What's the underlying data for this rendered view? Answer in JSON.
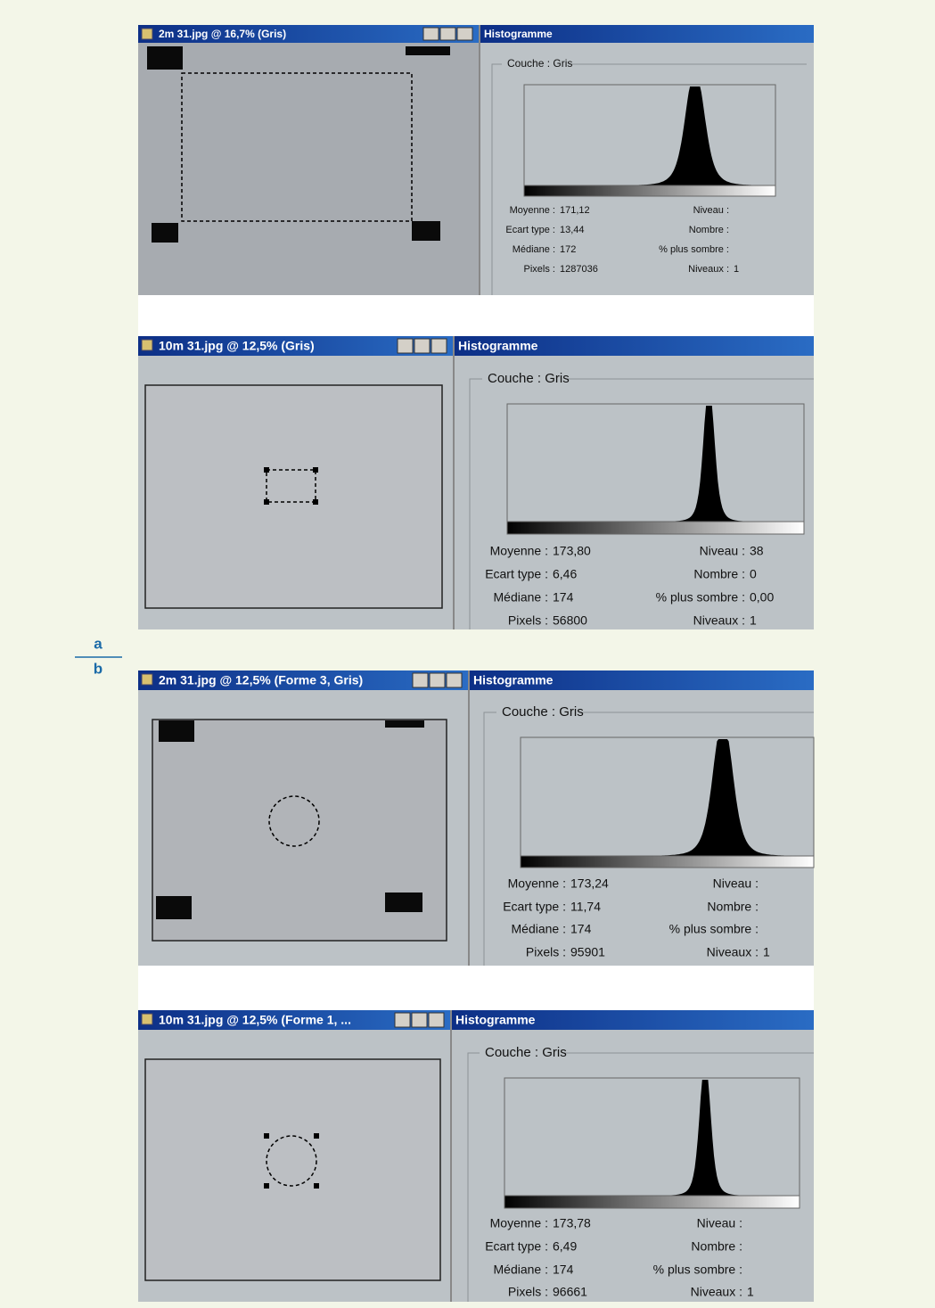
{
  "figure_labels": {
    "a": "a",
    "b": "b"
  },
  "panels": [
    {
      "window_title": "2m 31.jpg @ 16,7% (Gris)",
      "histogram_title": "Histogramme",
      "channel": "Couche : Gris",
      "stats_left": [
        {
          "label": "Moyenne :",
          "value": "171,12"
        },
        {
          "label": "Ecart type :",
          "value": "13,44"
        },
        {
          "label": "Médiane :",
          "value": "172"
        },
        {
          "label": "Pixels :",
          "value": "1287036"
        }
      ],
      "stats_right": [
        {
          "label": "Niveau :"
        },
        {
          "label": "Nombre :"
        },
        {
          "label": "% plus sombre :"
        },
        {
          "label": "Niveaux :",
          "value": "1"
        }
      ]
    },
    {
      "window_title": "10m 31.jpg @ 12,5% (Gris)",
      "histogram_title": "Histogramme",
      "channel": "Couche : Gris",
      "stats_left": [
        {
          "label": "Moyenne :",
          "value": "173,80"
        },
        {
          "label": "Ecart type :",
          "value": "6,46"
        },
        {
          "label": "Médiane :",
          "value": "174"
        },
        {
          "label": "Pixels :",
          "value": "56800"
        }
      ],
      "stats_right": [
        {
          "label": "Niveau :",
          "value": "38"
        },
        {
          "label": "Nombre :",
          "value": "0"
        },
        {
          "label": "% plus sombre :",
          "value": "0,00"
        },
        {
          "label": "Niveaux :",
          "value": "1"
        }
      ]
    },
    {
      "window_title": "2m 31.jpg @ 12,5% (Forme 3, Gris)",
      "histogram_title": "Histogramme",
      "channel": "Couche : Gris",
      "stats_left": [
        {
          "label": "Moyenne :",
          "value": "173,24"
        },
        {
          "label": "Ecart type :",
          "value": "11,74"
        },
        {
          "label": "Médiane :",
          "value": "174"
        },
        {
          "label": "Pixels :",
          "value": "95901"
        }
      ],
      "stats_right": [
        {
          "label": "Niveau :"
        },
        {
          "label": "Nombre :"
        },
        {
          "label": "% plus sombre :"
        },
        {
          "label": "Niveaux :",
          "value": "1"
        }
      ]
    },
    {
      "window_title": "10m 31.jpg @ 12,5% (Forme 1, ...",
      "histogram_title": "Histogramme",
      "channel": "Couche : Gris",
      "stats_left": [
        {
          "label": "Moyenne :",
          "value": "173,78"
        },
        {
          "label": "Ecart type :",
          "value": "6,49"
        },
        {
          "label": "Médiane :",
          "value": "174"
        },
        {
          "label": "Pixels :",
          "value": "96661"
        }
      ],
      "stats_right": [
        {
          "label": "Niveau :"
        },
        {
          "label": "Nombre :"
        },
        {
          "label": "% plus sombre :"
        },
        {
          "label": "Niveaux :",
          "value": "1"
        }
      ]
    }
  ]
}
